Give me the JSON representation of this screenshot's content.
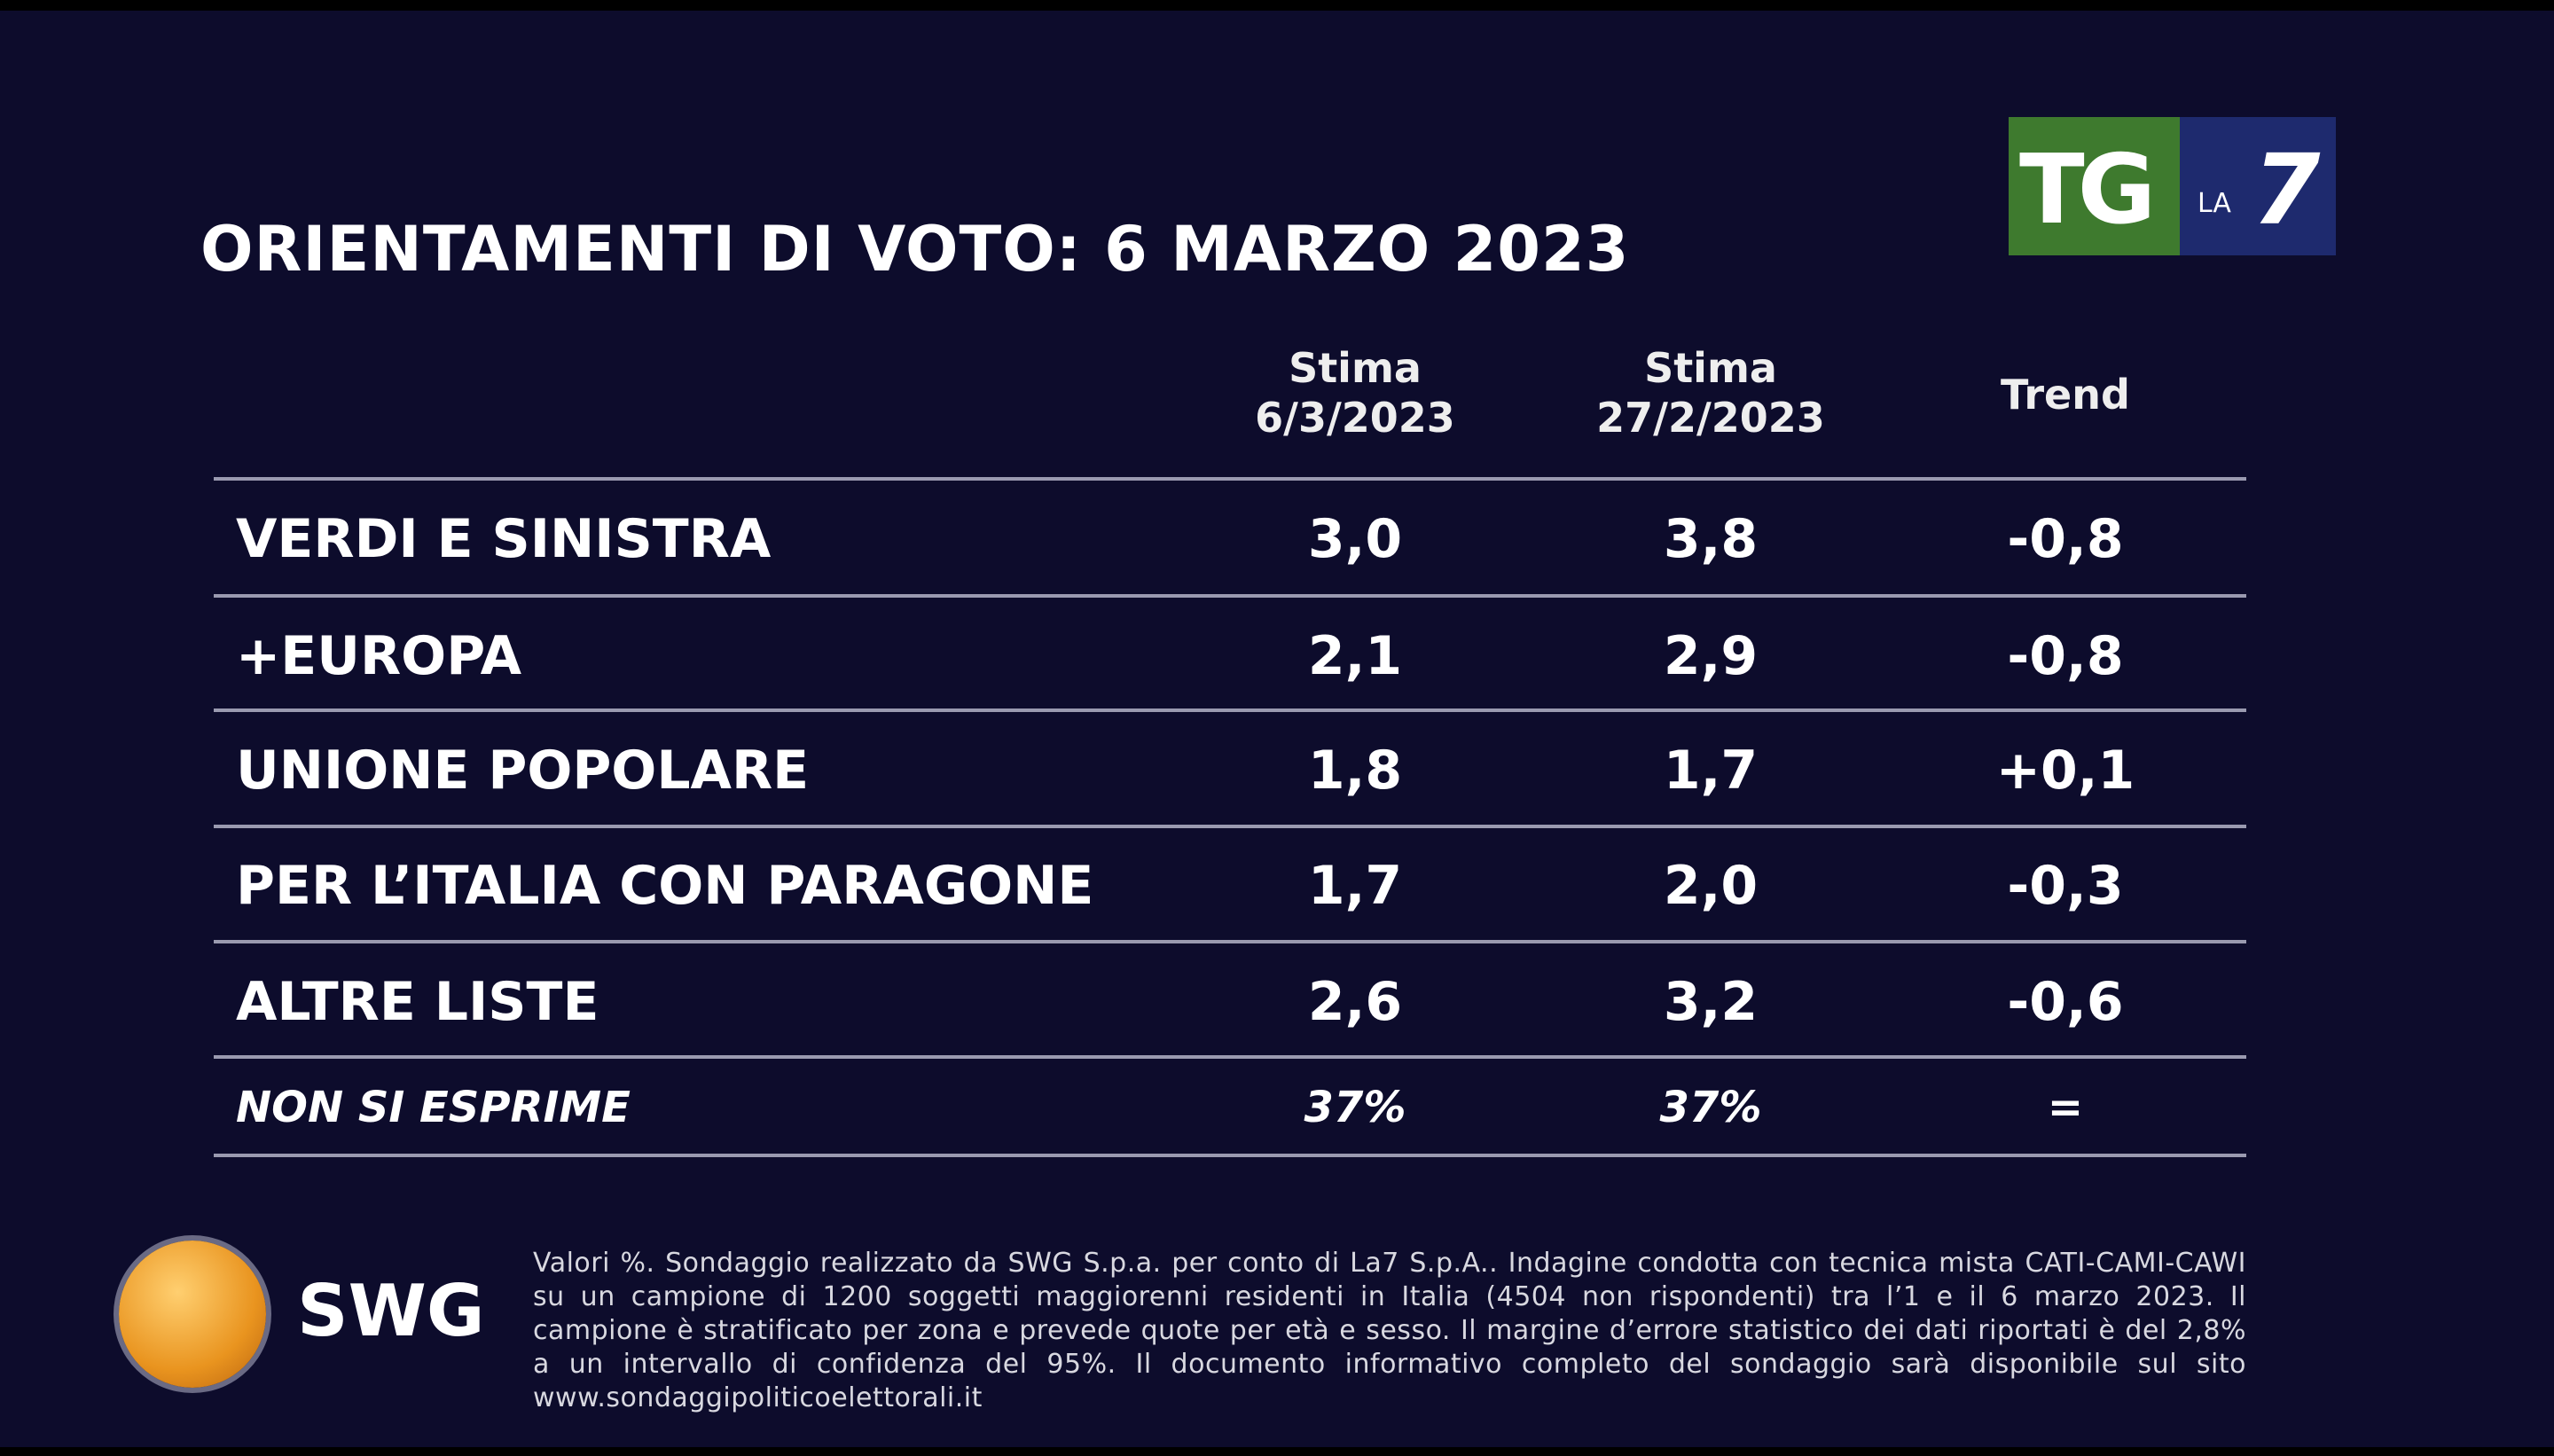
{
  "title": "ORIENTAMENTI DI VOTO: 6 MARZO 2023",
  "logo": {
    "tg": "TG",
    "la": "LA",
    "seven": "7"
  },
  "table": {
    "columns": [
      [
        "Stima",
        "6/3/2023"
      ],
      [
        "Stima",
        "27/2/2023"
      ],
      [
        "Trend"
      ]
    ],
    "rows": [
      [
        "VERDI E SINISTRA",
        "3,0",
        "3,8",
        "-0,8"
      ],
      [
        "+EUROPA",
        "2,1",
        "2,9",
        "-0,8"
      ],
      [
        "UNIONE POPOLARE",
        "1,8",
        "1,7",
        "+0,1"
      ],
      [
        "PER L’ITALIA CON PARAGONE",
        "1,7",
        "2,0",
        "-0,3"
      ],
      [
        "ALTRE LISTE",
        "2,6",
        "3,2",
        "-0,6"
      ],
      [
        "NON SI ESPRIME",
        "37%",
        "37%",
        "="
      ]
    ]
  },
  "footer": {
    "brand": "SWG",
    "note": "Valori %. Sondaggio realizzato da SWG S.p.a. per conto di La7 S.p.A.. Indagine condotta con tecnica mista CATI-CAMI-CAWI su un campione di 1200 soggetti maggiorenni residenti in Italia (4504 non rispondenti) tra l’1 e il 6 marzo 2023. Il campione è stratificato per zona e prevede quote per età e sesso. Il margine d’errore statistico dei dati riportati è del 2,8% a un intervallo di confidenza del 95%. Il documento informativo completo del sondaggio sarà disponibile sul sito www.sondaggipoliticoelettorali.it"
  }
}
